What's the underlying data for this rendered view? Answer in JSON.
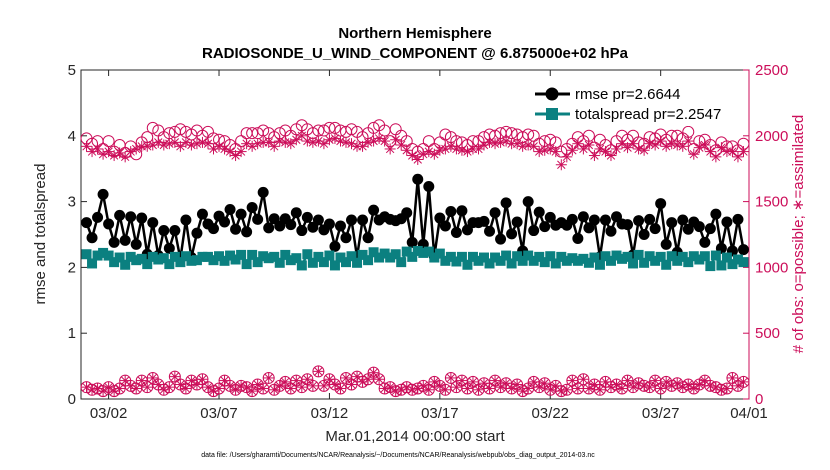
{
  "chart_data": {
    "type": "line",
    "title": "Northern Hemisphere",
    "subtitle": "RADIOSONDE_U_WIND_COMPONENT @ 6.875000e+02 hPa",
    "xlabel": "Mar.01,2014 00:00:00 start",
    "ylabel_left": "rmse and totalspread",
    "ylabel_right": "# of obs: o=possible; ∗=assimilated",
    "footnote": "data file: /Users/gharamti/Documents/NCAR/Reanalysis/~/Documents/NCAR/Reanalysis/webpub/obs_diag_output_2014-03.nc",
    "xlim": [
      0.75,
      31.0
    ],
    "ylim_left": [
      0,
      5
    ],
    "ylim_right": [
      0,
      2500
    ],
    "x_ticks": [
      {
        "x": 2,
        "label": "03/02"
      },
      {
        "x": 7,
        "label": "03/07"
      },
      {
        "x": 12,
        "label": "03/12"
      },
      {
        "x": 17,
        "label": "03/17"
      },
      {
        "x": 22,
        "label": "03/22"
      },
      {
        "x": 27,
        "label": "03/27"
      },
      {
        "x": 31,
        "label": "04/01"
      }
    ],
    "y_left_ticks": [
      "0",
      "1",
      "2",
      "3",
      "4",
      "5"
    ],
    "y_right_ticks": [
      "0",
      "500",
      "1000",
      "1500",
      "2000",
      "2500"
    ],
    "colors": {
      "rmse": "#000000",
      "spread": "#0b8080",
      "obs": "#cc0e5a"
    },
    "x_start": 1.0,
    "x_step": 0.25,
    "series": [
      {
        "name": "rmse",
        "legend": "rmse pr=2.6644",
        "axis": "left",
        "values": [
          2.68,
          2.45,
          2.76,
          3.11,
          2.66,
          2.38,
          2.79,
          2.41,
          2.77,
          2.35,
          2.75,
          2.2,
          2.68,
          2.18,
          2.56,
          2.29,
          2.56,
          2.13,
          2.72,
          2.15,
          2.52,
          2.81,
          2.66,
          2.59,
          2.78,
          2.69,
          2.88,
          2.58,
          2.81,
          2.54,
          2.91,
          2.73,
          3.14,
          2.6,
          2.74,
          2.63,
          2.74,
          2.65,
          2.83,
          2.56,
          2.76,
          2.61,
          2.72,
          2.57,
          2.66,
          2.32,
          2.63,
          2.45,
          2.72,
          2.16,
          2.72,
          2.45,
          2.87,
          2.72,
          2.77,
          2.73,
          2.71,
          2.74,
          2.83,
          2.38,
          3.34,
          2.35,
          3.23,
          2.17,
          2.75,
          2.63,
          2.85,
          2.53,
          2.86,
          2.57,
          2.68,
          2.68,
          2.7,
          2.55,
          2.83,
          2.43,
          2.98,
          2.51,
          2.69,
          2.25,
          3.0,
          2.56,
          2.84,
          2.62,
          2.76,
          2.64,
          2.68,
          2.64,
          2.73,
          2.44,
          2.77,
          2.6,
          2.72,
          2.16,
          2.72,
          2.55,
          2.77,
          2.66,
          2.65,
          2.19,
          2.71,
          2.5,
          2.73,
          2.59,
          2.97,
          2.35,
          2.68,
          2.23,
          2.72,
          2.58,
          2.69,
          2.62,
          2.38,
          2.59,
          2.81,
          2.29,
          2.69,
          2.25,
          2.73,
          2.27
        ]
      },
      {
        "name": "spread",
        "legend": "totalspread pr=2.2547",
        "axis": "left",
        "values": [
          2.2,
          2.06,
          2.18,
          2.22,
          2.18,
          2.08,
          2.15,
          2.04,
          2.16,
          2.11,
          2.13,
          2.05,
          2.16,
          2.12,
          2.14,
          2.05,
          2.16,
          2.08,
          2.17,
          2.1,
          2.11,
          2.16,
          2.16,
          2.11,
          2.17,
          2.1,
          2.18,
          2.12,
          2.19,
          2.05,
          2.19,
          2.08,
          2.17,
          2.14,
          2.16,
          2.07,
          2.19,
          2.11,
          2.14,
          2.03,
          2.2,
          2.07,
          2.16,
          2.08,
          2.18,
          2.03,
          2.15,
          2.08,
          2.17,
          2.07,
          2.19,
          2.11,
          2.23,
          2.15,
          2.21,
          2.15,
          2.2,
          2.08,
          2.24,
          2.16,
          2.25,
          2.22,
          2.24,
          2.15,
          2.21,
          2.1,
          2.16,
          2.09,
          2.16,
          2.04,
          2.16,
          2.1,
          2.15,
          2.06,
          2.15,
          2.1,
          2.18,
          2.06,
          2.17,
          2.1,
          2.18,
          2.1,
          2.16,
          2.08,
          2.17,
          2.06,
          2.16,
          2.1,
          2.14,
          2.1,
          2.13,
          2.07,
          2.15,
          2.04,
          2.17,
          2.1,
          2.18,
          2.13,
          2.16,
          2.06,
          2.19,
          2.07,
          2.17,
          2.1,
          2.16,
          2.04,
          2.17,
          2.1,
          2.16,
          2.08,
          2.17,
          2.12,
          2.17,
          2.02,
          2.18,
          2.03,
          2.15,
          2.05,
          2.12,
          2.08
        ]
      },
      {
        "name": "possible",
        "legend": "o=possible",
        "axis": "right",
        "values": [
          1980,
          1940,
          1960,
          1900,
          1960,
          1880,
          1930,
          1870,
          1920,
          1860,
          1950,
          1990,
          2060,
          2040,
          1990,
          2020,
          2030,
          2050,
          2030,
          2010,
          2040,
          2000,
          2030,
          1980,
          1970,
          1960,
          1930,
          1900,
          1960,
          2020,
          2020,
          2020,
          2040,
          2020,
          1990,
          2020,
          2040,
          2000,
          2050,
          2080,
          2050,
          2020,
          2040,
          2040,
          2060,
          2060,
          2040,
          2030,
          2050,
          2030,
          1990,
          2020,
          2060,
          2080,
          2040,
          1960,
          2050,
          2000,
          1960,
          1900,
          1880,
          1900,
          1960,
          1900,
          1950,
          2010,
          1990,
          1960,
          1950,
          1930,
          1960,
          1960,
          1990,
          2010,
          2000,
          2020,
          2030,
          2020,
          2010,
          1990,
          2010,
          2000,
          1940,
          1960,
          1970,
          1950,
          1880,
          1900,
          1940,
          1990,
          1960,
          2000,
          1910,
          1970,
          1930,
          1890,
          1960,
          2000,
          1970,
          2000,
          1950,
          1940,
          1990,
          1980,
          2010,
          1970,
          2000,
          2000,
          1980,
          2030,
          1900,
          1960,
          1970,
          1930,
          1890,
          1950,
          1920,
          1920,
          1890,
          1940
        ]
      },
      {
        "name": "assimilated",
        "legend": "∗=assimilated",
        "axis": "right",
        "values": [
          1920,
          1880,
          1900,
          1860,
          1880,
          1850,
          1870,
          1840,
          1880,
          1900,
          1920,
          1920,
          1930,
          1950,
          1930,
          1940,
          1950,
          1920,
          1950,
          1930,
          1940,
          1950,
          1940,
          1900,
          1920,
          1900,
          1880,
          1850,
          1880,
          1940,
          1920,
          1940,
          1950,
          1950,
          1920,
          1960,
          1950,
          1940,
          1970,
          2000,
          1960,
          1950,
          1960,
          1940,
          1970,
          1980,
          1960,
          1950,
          1940,
          1920,
          1920,
          1950,
          1960,
          1980,
          1960,
          1900,
          1970,
          1930,
          1890,
          1850,
          1820,
          1860,
          1880,
          1860,
          1890,
          1900,
          1920,
          1900,
          1890,
          1880,
          1900,
          1900,
          1930,
          1950,
          1940,
          1950,
          1960,
          1940,
          1940,
          1920,
          1930,
          1920,
          1880,
          1890,
          1900,
          1880,
          1780,
          1840,
          1890,
          1940,
          1900,
          1930,
          1850,
          1900,
          1880,
          1850,
          1900,
          1940,
          1910,
          1940,
          1900,
          1890,
          1940,
          1930,
          1960,
          1920,
          1940,
          1930,
          1920,
          1960,
          1860,
          1910,
          1930,
          1880,
          1840,
          1910,
          1880,
          1880,
          1840,
          1880
        ]
      },
      {
        "name": "possible_low",
        "legend": "",
        "axis": "right",
        "values": [
          90,
          70,
          80,
          60,
          90,
          60,
          80,
          140,
          100,
          80,
          140,
          90,
          160,
          110,
          70,
          90,
          170,
          110,
          80,
          140,
          110,
          150,
          90,
          60,
          80,
          140,
          100,
          70,
          100,
          90,
          60,
          110,
          80,
          160,
          70,
          100,
          130,
          80,
          140,
          90,
          150,
          100,
          210,
          100,
          150,
          110,
          80,
          160,
          110,
          170,
          130,
          150,
          200,
          150,
          80,
          90,
          60,
          70,
          90,
          70,
          80,
          100,
          70,
          130,
          100,
          70,
          160,
          90,
          140,
          80,
          130,
          70,
          120,
          80,
          140,
          90,
          120,
          80,
          110,
          60,
          80,
          130,
          90,
          120,
          70,
          100,
          60,
          70,
          140,
          80,
          150,
          80,
          110,
          70,
          130,
          90,
          110,
          80,
          140,
          90,
          120,
          100,
          90,
          140,
          80,
          130,
          100,
          120,
          90,
          110,
          80,
          110,
          140,
          100,
          90,
          70,
          80,
          160,
          100,
          130
        ]
      },
      {
        "name": "assimilated_low",
        "legend": "",
        "axis": "right",
        "values": [
          90,
          70,
          80,
          60,
          90,
          60,
          80,
          140,
          100,
          80,
          140,
          90,
          160,
          110,
          70,
          90,
          170,
          110,
          80,
          140,
          110,
          150,
          90,
          60,
          80,
          140,
          100,
          70,
          100,
          90,
          60,
          110,
          80,
          160,
          70,
          100,
          130,
          80,
          140,
          90,
          150,
          100,
          210,
          100,
          150,
          110,
          80,
          160,
          110,
          170,
          130,
          150,
          200,
          150,
          80,
          90,
          60,
          70,
          90,
          70,
          80,
          100,
          70,
          130,
          100,
          70,
          160,
          90,
          140,
          80,
          130,
          70,
          120,
          80,
          140,
          90,
          120,
          80,
          110,
          60,
          80,
          130,
          90,
          120,
          70,
          100,
          60,
          70,
          140,
          80,
          150,
          80,
          110,
          70,
          130,
          90,
          110,
          80,
          140,
          90,
          120,
          100,
          90,
          140,
          80,
          130,
          100,
          120,
          90,
          110,
          80,
          110,
          140,
          100,
          90,
          70,
          80,
          160,
          100,
          130
        ]
      }
    ],
    "legend_position": "top-right"
  }
}
